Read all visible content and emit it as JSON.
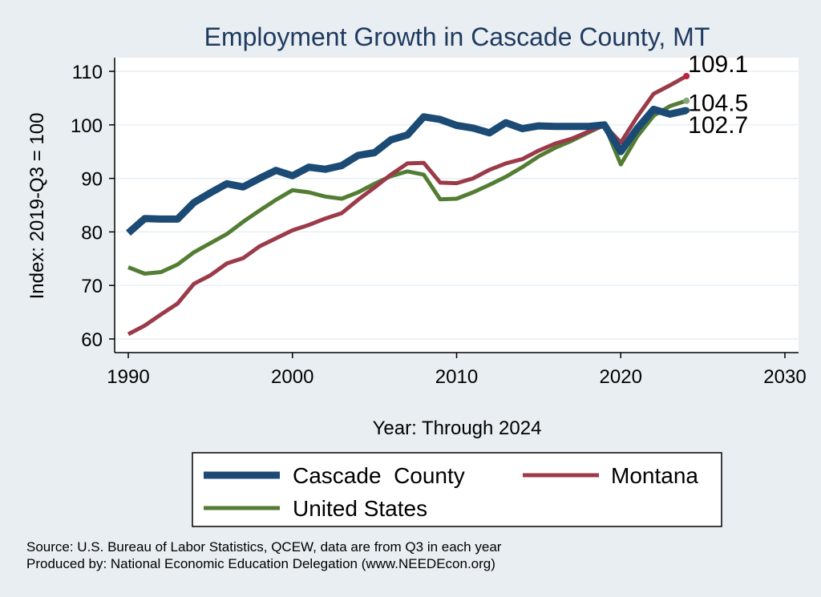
{
  "chart_data": {
    "type": "line",
    "title": "Employment Growth in Cascade County, MT",
    "xlabel": "Year: Through 2024",
    "ylabel": "Index: 2019-Q3 = 100",
    "xlim": [
      1990,
      2030
    ],
    "ylim": [
      60,
      110
    ],
    "xticks": [
      "1990",
      "2000",
      "2010",
      "2020",
      "2030"
    ],
    "yticks": [
      "60",
      "70",
      "80",
      "90",
      "100",
      "110"
    ],
    "grid": true,
    "legend_position": "bottom",
    "x": [
      1990,
      1991,
      1992,
      1993,
      1994,
      1995,
      1996,
      1997,
      1998,
      1999,
      2000,
      2001,
      2002,
      2003,
      2004,
      2005,
      2006,
      2007,
      2008,
      2009,
      2010,
      2011,
      2012,
      2013,
      2014,
      2015,
      2016,
      2017,
      2018,
      2019,
      2020,
      2021,
      2022,
      2023,
      2024
    ],
    "series": [
      {
        "name": "Cascade  County",
        "color": "#1b4a75",
        "end_label": "102.7",
        "values": [
          79.8,
          82.5,
          82.4,
          82.4,
          85.5,
          87.3,
          89.0,
          88.4,
          90.0,
          91.5,
          90.5,
          92.1,
          91.7,
          92.4,
          94.3,
          94.8,
          97.2,
          98.1,
          101.5,
          101.0,
          99.9,
          99.4,
          98.5,
          100.4,
          99.3,
          99.8,
          99.7,
          99.7,
          99.7,
          100.0,
          95.0,
          99.3,
          102.9,
          102.0,
          102.7
        ]
      },
      {
        "name": "Montana",
        "color": "#9b3a48",
        "end_label": "109.1",
        "values": [
          60.9,
          62.5,
          64.6,
          66.6,
          70.3,
          71.9,
          74.1,
          75.1,
          77.3,
          78.8,
          80.3,
          81.3,
          82.5,
          83.5,
          86.0,
          88.3,
          90.7,
          92.8,
          92.9,
          89.2,
          89.1,
          90.0,
          91.6,
          92.8,
          93.6,
          95.2,
          96.5,
          97.4,
          98.7,
          99.9,
          96.7,
          101.5,
          105.8,
          107.4,
          109.1
        ]
      },
      {
        "name": "United States",
        "color": "#537d33",
        "end_label": "104.5",
        "values": [
          73.4,
          72.2,
          72.5,
          73.9,
          76.2,
          77.9,
          79.6,
          81.9,
          84.0,
          86.0,
          87.8,
          87.4,
          86.6,
          86.2,
          87.4,
          89.0,
          90.4,
          91.3,
          90.7,
          86.1,
          86.2,
          87.4,
          88.8,
          90.3,
          92.1,
          94.1,
          95.7,
          97.0,
          98.5,
          100.0,
          92.6,
          97.8,
          101.7,
          103.5,
          104.5
        ]
      }
    ]
  },
  "source_line1": "Source: U.S. Bureau of Labor Statistics, QCEW, data are from Q3 in each year",
  "source_line2": "Produced by: National Economic Education Delegation (www.NEEDEcon.org)"
}
